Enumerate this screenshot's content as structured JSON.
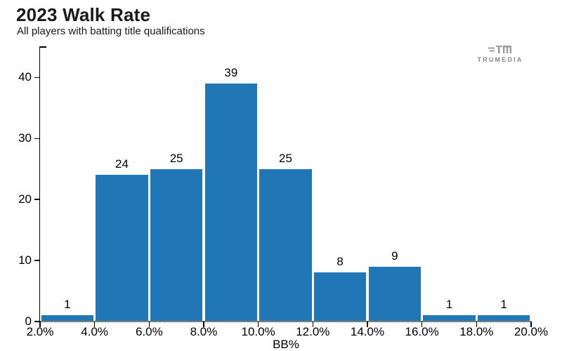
{
  "chart": {
    "title": "2023 Walk Rate",
    "subtitle": "All players with batting title qualifications",
    "xlabel": "BB%"
  },
  "logo": {
    "text": "TRUMEDIA",
    "icon": "trumedia-mark-icon"
  },
  "colors": {
    "bar": "#2176b5",
    "axis": "#000000",
    "baseline": "#7f7f7f",
    "logo_gray": "#9b9b9b",
    "text": "#1a1a1a"
  },
  "chart_data": {
    "type": "bar",
    "title": "2023 Walk Rate",
    "subtitle": "All players with batting title qualifications",
    "xlabel": "BB%",
    "ylabel": "",
    "bin_edges_percent": [
      2,
      4,
      6,
      8,
      10,
      12,
      14,
      16,
      18,
      20
    ],
    "x_tick_labels": [
      "2.0%",
      "4.0%",
      "6.0%",
      "8.0%",
      "10.0%",
      "12.0%",
      "14.0%",
      "16.0%",
      "18.0%",
      "20.0%"
    ],
    "values": [
      1,
      24,
      25,
      39,
      25,
      8,
      9,
      1,
      1
    ],
    "y_ticks": [
      0,
      10,
      20,
      30,
      40
    ],
    "ylim": [
      0,
      45
    ],
    "xlim_percent": [
      2,
      20
    ],
    "grid": false,
    "legend": "none",
    "bar_value_labels": true
  }
}
